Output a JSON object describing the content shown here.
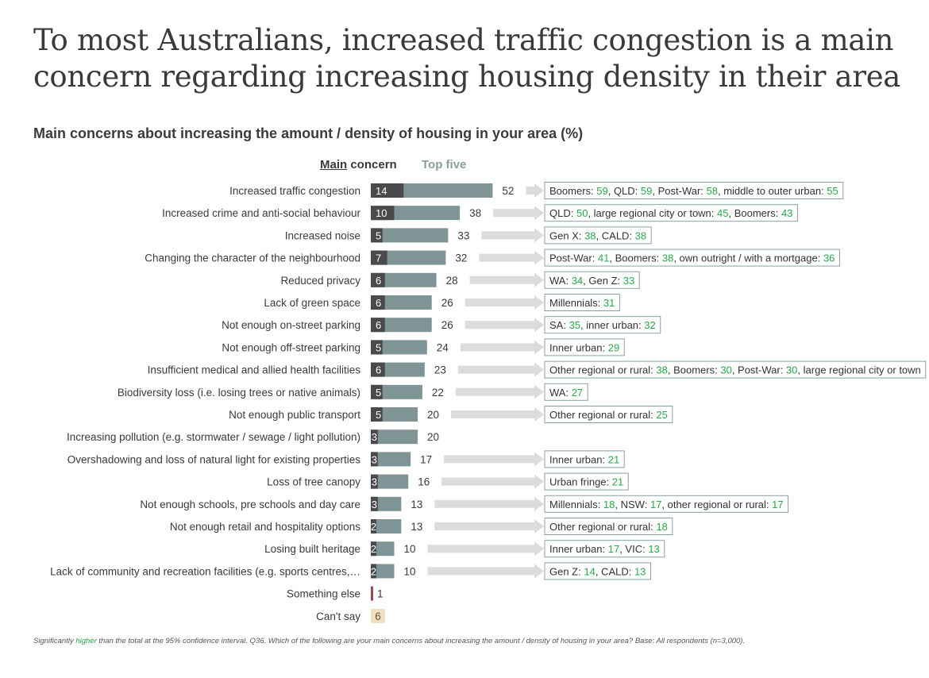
{
  "title": "To most Australians, increased traffic congestion is a main concern regarding increasing housing density in their area",
  "subtitle": "Main concerns about increasing the amount / density of housing in your area (%)",
  "legend": {
    "main_underlined": "Main",
    "main_rest": " concern",
    "top_five": "Top five"
  },
  "colors": {
    "main": "#4a4a4c",
    "top_five": "#7f9595",
    "arrow": "#dcdcdc",
    "box_border": "#8aa0a0",
    "highlight": "#2aa84a",
    "something_else": "#9b4a50",
    "cant_say": "#f1dfc2"
  },
  "footnote": {
    "pre": "Significantly ",
    "highlight": "higher",
    "post": " than the total at the 95% confidence interval. Q36. Which of the following are your main concerns about increasing the amount / density of housing in your area? Base: All respondents (n=3,000)."
  },
  "chart_data": {
    "type": "bar",
    "orientation": "horizontal",
    "series_names": [
      "Main concern",
      "Top five"
    ],
    "categories": [
      {
        "label": "Increased traffic congestion",
        "main": 14,
        "top5": 52,
        "subgroups": [
          {
            "name": "Boomers",
            "value": 59
          },
          {
            "name": "QLD",
            "value": 59
          },
          {
            "name": "Post-War",
            "value": 58
          },
          {
            "name": "middle to outer urban",
            "value": 55
          }
        ]
      },
      {
        "label": "Increased crime and anti-social behaviour",
        "main": 10,
        "top5": 38,
        "subgroups": [
          {
            "name": "QLD",
            "value": 50
          },
          {
            "name": "large regional city or town",
            "value": 45
          },
          {
            "name": "Boomers",
            "value": 43
          }
        ]
      },
      {
        "label": "Increased noise",
        "main": 5,
        "top5": 33,
        "subgroups": [
          {
            "name": "Gen X",
            "value": 38
          },
          {
            "name": "CALD",
            "value": 38
          }
        ]
      },
      {
        "label": "Changing the character of the neighbourhood",
        "main": 7,
        "top5": 32,
        "subgroups": [
          {
            "name": "Post-War",
            "value": 41
          },
          {
            "name": "Boomers",
            "value": 38
          },
          {
            "name": "own outright / with a mortgage",
            "value": 36
          }
        ]
      },
      {
        "label": "Reduced privacy",
        "main": 6,
        "top5": 28,
        "subgroups": [
          {
            "name": "WA",
            "value": 34
          },
          {
            "name": "Gen Z",
            "value": 33
          }
        ]
      },
      {
        "label": "Lack of green space",
        "main": 6,
        "top5": 26,
        "subgroups": [
          {
            "name": "Millennials",
            "value": 31
          }
        ]
      },
      {
        "label": "Not enough on-street parking",
        "main": 6,
        "top5": 26,
        "subgroups": [
          {
            "name": "SA",
            "value": 35
          },
          {
            "name": "inner urban",
            "value": 32
          }
        ]
      },
      {
        "label": "Not enough off-street parking",
        "main": 5,
        "top5": 24,
        "subgroups": [
          {
            "name": "Inner urban",
            "value": 29
          }
        ]
      },
      {
        "label": "Insufficient medical and allied health facilities",
        "main": 6,
        "top5": 23,
        "subgroups": [
          {
            "name": "Other regional or rural",
            "value": 38
          },
          {
            "name": "Boomers",
            "value": 30
          },
          {
            "name": "Post-War",
            "value": 30
          },
          {
            "name": "large regional city or town",
            "value": null
          }
        ]
      },
      {
        "label": "Biodiversity loss (i.e. losing trees or native animals)",
        "main": 5,
        "top5": 22,
        "subgroups": [
          {
            "name": "WA",
            "value": 27
          }
        ]
      },
      {
        "label": "Not enough public transport",
        "main": 5,
        "top5": 20,
        "subgroups": [
          {
            "name": "Other regional or rural",
            "value": 25
          }
        ]
      },
      {
        "label": "Increasing pollution (e.g. stormwater / sewage / light pollution)",
        "main": 3,
        "top5": 20,
        "subgroups": []
      },
      {
        "label": "Overshadowing and loss of natural light for existing properties",
        "main": 3,
        "top5": 17,
        "subgroups": [
          {
            "name": "Inner urban",
            "value": 21
          }
        ]
      },
      {
        "label": "Loss of tree canopy",
        "main": 3,
        "top5": 16,
        "subgroups": [
          {
            "name": "Urban fringe",
            "value": 21
          }
        ]
      },
      {
        "label": "Not enough schools, pre schools and day care",
        "main": 3,
        "top5": 13,
        "subgroups": [
          {
            "name": "Millennials",
            "value": 18
          },
          {
            "name": "NSW",
            "value": 17
          },
          {
            "name": "other regional or rural",
            "value": 17
          }
        ]
      },
      {
        "label": "Not enough retail and hospitality options",
        "main": 2,
        "top5": 13,
        "subgroups": [
          {
            "name": "Other regional or rural",
            "value": 18
          }
        ]
      },
      {
        "label": "Losing built heritage",
        "main": 2,
        "top5": 10,
        "subgroups": [
          {
            "name": "Inner urban",
            "value": 17
          },
          {
            "name": "VIC",
            "value": 13
          }
        ]
      },
      {
        "label": "Lack of community and recreation facilities (e.g. sports centres,…",
        "main": 2,
        "top5": 10,
        "subgroups": [
          {
            "name": "Gen Z",
            "value": 14
          },
          {
            "name": "CALD",
            "value": 13
          }
        ]
      },
      {
        "label": "Something else",
        "main": null,
        "top5": 1,
        "subgroups": []
      },
      {
        "label": "Can't say",
        "main": null,
        "top5": 6,
        "subgroups": []
      }
    ]
  }
}
